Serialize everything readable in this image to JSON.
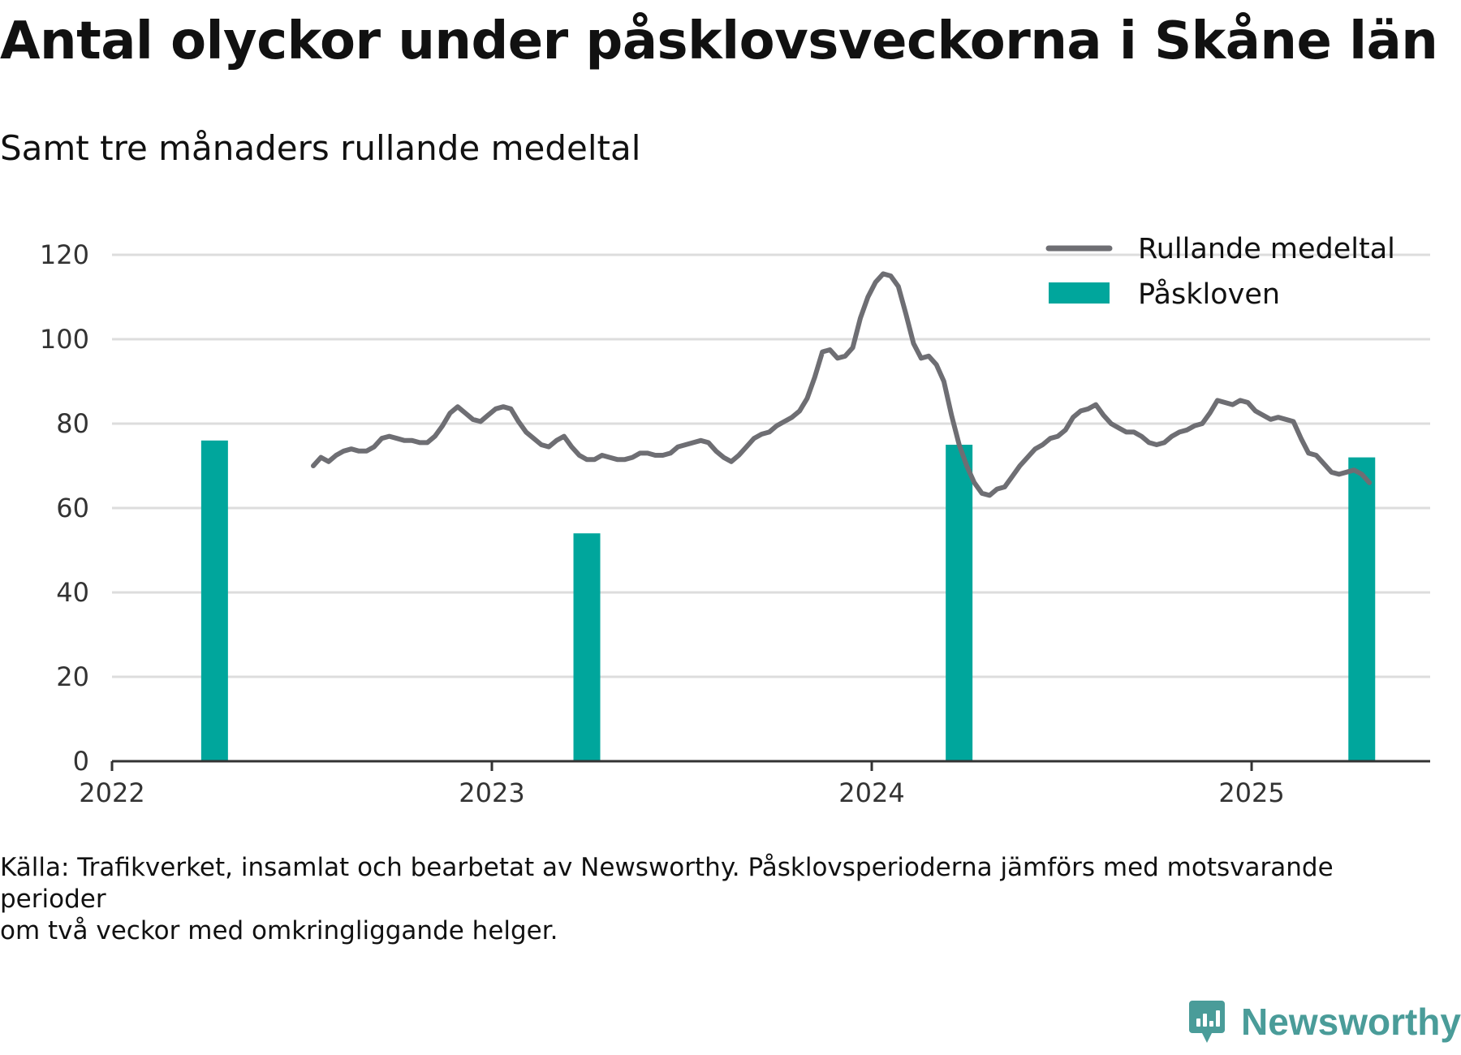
{
  "title": "Antal olyckor under påsklovsveckorna i Skåne län",
  "subtitle": "Samt tre månaders rullande medeltal",
  "caption": {
    "line1": "Källa: Trafikverket, insamlat och bearbetat av Newsworthy. Påsklovsperioderna jämförs med motsvarande perioder",
    "line2": "om två veckor med omkringliggande helger."
  },
  "brand": {
    "name": "Newsworthy",
    "icon": "newsworthy-logo-icon",
    "color": "#4a9c99"
  },
  "chart_data": {
    "type": "bar+line",
    "ylim": [
      0,
      120
    ],
    "yticks": [
      0,
      20,
      40,
      60,
      80,
      100,
      120
    ],
    "xlim": [
      2022.0,
      2025.47
    ],
    "xticks": [
      2022,
      2023,
      2024,
      2025
    ],
    "grid": true,
    "legend_position": "top-right",
    "colors": {
      "line": "#6e6e73",
      "bars": "#00a69c",
      "grid": "#dddddd",
      "axis": "#333333"
    },
    "bars": {
      "name": "Påskloven",
      "points": [
        {
          "x": 2022.27,
          "y": 76
        },
        {
          "x": 2023.25,
          "y": 54
        },
        {
          "x": 2024.23,
          "y": 75
        },
        {
          "x": 2025.29,
          "y": 72
        }
      ]
    },
    "line": {
      "name": "Rullande medeltal",
      "points": [
        [
          2022.53,
          70
        ],
        [
          2022.55,
          72
        ],
        [
          2022.57,
          71
        ],
        [
          2022.59,
          72.5
        ],
        [
          2022.61,
          73.5
        ],
        [
          2022.63,
          74
        ],
        [
          2022.65,
          73.5
        ],
        [
          2022.67,
          73.5
        ],
        [
          2022.69,
          74.5
        ],
        [
          2022.71,
          76.5
        ],
        [
          2022.73,
          77
        ],
        [
          2022.75,
          76.5
        ],
        [
          2022.77,
          76
        ],
        [
          2022.79,
          76
        ],
        [
          2022.81,
          75.5
        ],
        [
          2022.83,
          75.5
        ],
        [
          2022.85,
          77
        ],
        [
          2022.87,
          79.5
        ],
        [
          2022.89,
          82.5
        ],
        [
          2022.91,
          84
        ],
        [
          2022.93,
          82.5
        ],
        [
          2022.95,
          81
        ],
        [
          2022.97,
          80.5
        ],
        [
          2022.99,
          82
        ],
        [
          2023.01,
          83.5
        ],
        [
          2023.03,
          84
        ],
        [
          2023.05,
          83.5
        ],
        [
          2023.07,
          80.5
        ],
        [
          2023.09,
          78
        ],
        [
          2023.11,
          76.5
        ],
        [
          2023.13,
          75
        ],
        [
          2023.15,
          74.5
        ],
        [
          2023.17,
          76
        ],
        [
          2023.19,
          77
        ],
        [
          2023.21,
          74.5
        ],
        [
          2023.23,
          72.5
        ],
        [
          2023.25,
          71.5
        ],
        [
          2023.27,
          71.5
        ],
        [
          2023.29,
          72.5
        ],
        [
          2023.31,
          72
        ],
        [
          2023.33,
          71.5
        ],
        [
          2023.35,
          71.5
        ],
        [
          2023.37,
          72
        ],
        [
          2023.39,
          73
        ],
        [
          2023.41,
          73
        ],
        [
          2023.43,
          72.5
        ],
        [
          2023.45,
          72.5
        ],
        [
          2023.47,
          73
        ],
        [
          2023.49,
          74.5
        ],
        [
          2023.51,
          75
        ],
        [
          2023.53,
          75.5
        ],
        [
          2023.55,
          76
        ],
        [
          2023.57,
          75.5
        ],
        [
          2023.59,
          73.5
        ],
        [
          2023.61,
          72
        ],
        [
          2023.63,
          71
        ],
        [
          2023.65,
          72.5
        ],
        [
          2023.67,
          74.5
        ],
        [
          2023.69,
          76.5
        ],
        [
          2023.71,
          77.5
        ],
        [
          2023.73,
          78
        ],
        [
          2023.75,
          79.5
        ],
        [
          2023.77,
          80.5
        ],
        [
          2023.79,
          81.5
        ],
        [
          2023.81,
          83
        ],
        [
          2023.83,
          86
        ],
        [
          2023.85,
          91
        ],
        [
          2023.87,
          97
        ],
        [
          2023.89,
          97.5
        ],
        [
          2023.91,
          95.5
        ],
        [
          2023.93,
          96
        ],
        [
          2023.95,
          98
        ],
        [
          2023.97,
          105
        ],
        [
          2023.99,
          110
        ],
        [
          2024.01,
          113.5
        ],
        [
          2024.03,
          115.5
        ],
        [
          2024.05,
          115
        ],
        [
          2024.07,
          112.5
        ],
        [
          2024.09,
          106
        ],
        [
          2024.11,
          99
        ],
        [
          2024.13,
          95.5
        ],
        [
          2024.15,
          96
        ],
        [
          2024.17,
          94
        ],
        [
          2024.19,
          90
        ],
        [
          2024.21,
          82
        ],
        [
          2024.23,
          75
        ],
        [
          2024.25,
          70
        ],
        [
          2024.27,
          66
        ],
        [
          2024.29,
          63.5
        ],
        [
          2024.31,
          63
        ],
        [
          2024.33,
          64.5
        ],
        [
          2024.35,
          65
        ],
        [
          2024.37,
          67.5
        ],
        [
          2024.39,
          70
        ],
        [
          2024.41,
          72
        ],
        [
          2024.43,
          74
        ],
        [
          2024.45,
          75
        ],
        [
          2024.47,
          76.5
        ],
        [
          2024.49,
          77
        ],
        [
          2024.51,
          78.5
        ],
        [
          2024.53,
          81.5
        ],
        [
          2024.55,
          83
        ],
        [
          2024.57,
          83.5
        ],
        [
          2024.59,
          84.5
        ],
        [
          2024.61,
          82
        ],
        [
          2024.63,
          80
        ],
        [
          2024.65,
          79
        ],
        [
          2024.67,
          78
        ],
        [
          2024.69,
          78
        ],
        [
          2024.71,
          77
        ],
        [
          2024.73,
          75.5
        ],
        [
          2024.75,
          75
        ],
        [
          2024.77,
          75.5
        ],
        [
          2024.79,
          77
        ],
        [
          2024.81,
          78
        ],
        [
          2024.83,
          78.5
        ],
        [
          2024.85,
          79.5
        ],
        [
          2024.87,
          80
        ],
        [
          2024.89,
          82.5
        ],
        [
          2024.91,
          85.5
        ],
        [
          2024.93,
          85
        ],
        [
          2024.95,
          84.5
        ],
        [
          2024.97,
          85.5
        ],
        [
          2024.99,
          85
        ],
        [
          2025.01,
          83
        ],
        [
          2025.03,
          82
        ],
        [
          2025.05,
          81
        ],
        [
          2025.07,
          81.5
        ],
        [
          2025.09,
          81
        ],
        [
          2025.11,
          80.5
        ],
        [
          2025.13,
          76.5
        ],
        [
          2025.15,
          73
        ],
        [
          2025.17,
          72.5
        ],
        [
          2025.19,
          70.5
        ],
        [
          2025.21,
          68.5
        ],
        [
          2025.23,
          68
        ],
        [
          2025.25,
          68.5
        ],
        [
          2025.27,
          69
        ],
        [
          2025.29,
          68
        ],
        [
          2025.31,
          66
        ]
      ]
    }
  }
}
